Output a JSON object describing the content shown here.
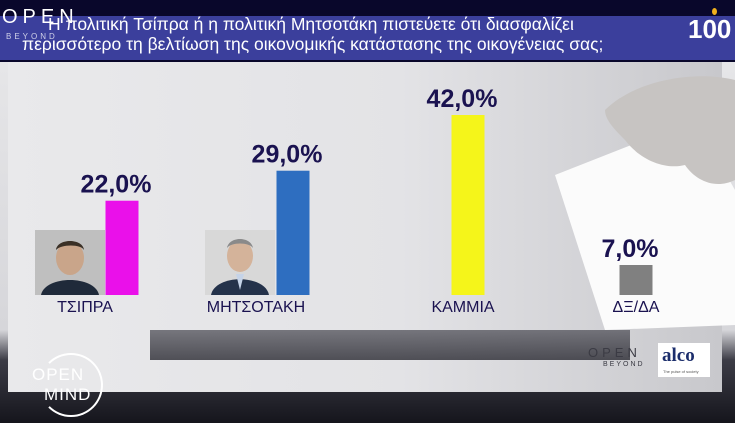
{
  "header": {
    "channel_logo": "OPEN",
    "channel_logo_sub": "BEYOND",
    "question_line1": "Η πολιτική Τσίπρα ή η πολιτική Μητσοτάκη πιστεύετε ότι διασφαλίζει",
    "question_line2": "περισσότερο τη βελτίωση της οικονομικής κατάστασης της οικογένειας σας;",
    "badge": "100"
  },
  "chart_data": {
    "type": "bar",
    "categories": [
      "ΤΣΙΠΡΑ",
      "ΜΗΤΣΟΤΑΚΗ",
      "ΚΑΜΜΙΑ",
      "ΔΞ/ΔΑ"
    ],
    "values": [
      22.0,
      29.0,
      42.0,
      7.0
    ],
    "value_labels": [
      "22,0%",
      "29,0%",
      "42,0%",
      "7,0%"
    ],
    "colors": [
      "#ea10ea",
      "#2e6ec0",
      "#f5f51a",
      "#808080"
    ],
    "ylim": [
      0,
      42
    ]
  },
  "footer": {
    "show_logo_line1": "OPEN",
    "show_logo_line2": "MIND",
    "open_logo": "OPEN",
    "open_logo_sub": "BEYOND",
    "pollster": "alco",
    "pollster_sub": "The pulse of society"
  }
}
